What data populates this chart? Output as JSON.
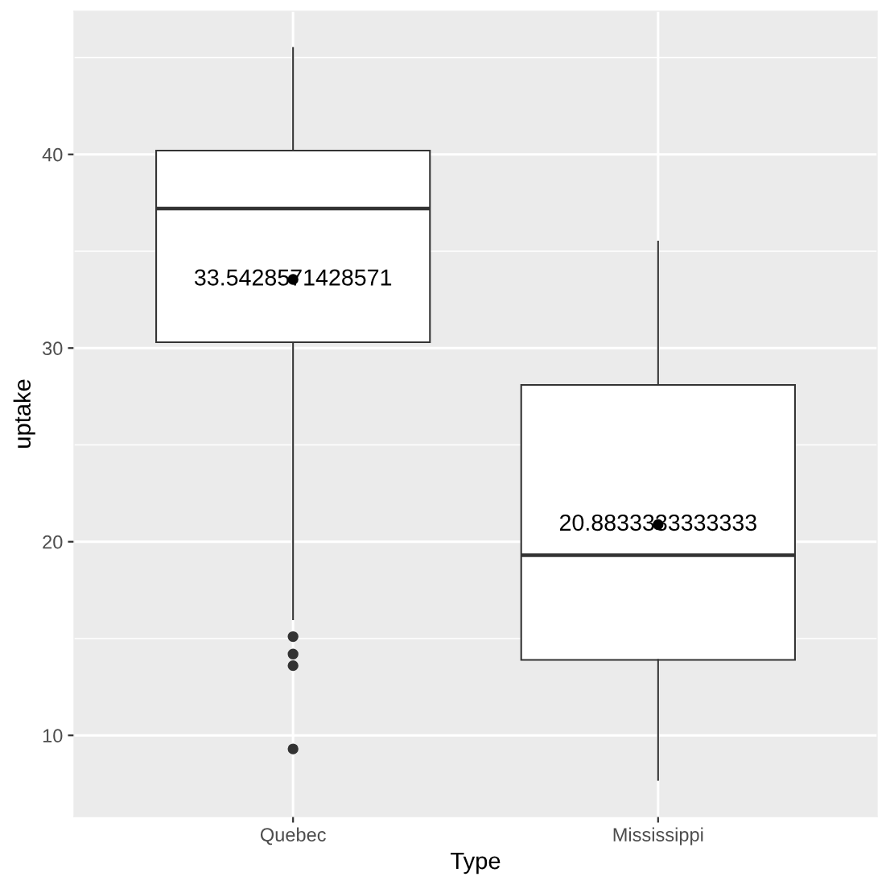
{
  "chart_data": {
    "type": "box",
    "xlabel": "Type",
    "ylabel": "uptake",
    "categories": [
      "Quebec",
      "Mississippi"
    ],
    "boxes": [
      {
        "low": 16.0,
        "q1": 30.3,
        "median": 37.2,
        "q3": 40.2,
        "high": 45.5,
        "mean": 33.5428571428571,
        "outliers": [
          15.1,
          14.2,
          13.6,
          9.3
        ]
      },
      {
        "low": 7.7,
        "q1": 13.9,
        "median": 19.3,
        "q3": 28.1,
        "high": 35.5,
        "mean": 20.8833333333333
      }
    ],
    "ylim": [
      5.81,
      47.39
    ],
    "yticks": [
      10,
      20,
      30,
      40
    ],
    "grid": true,
    "annotations": [
      "33.5428571428571",
      "20.8833333333333"
    ]
  }
}
